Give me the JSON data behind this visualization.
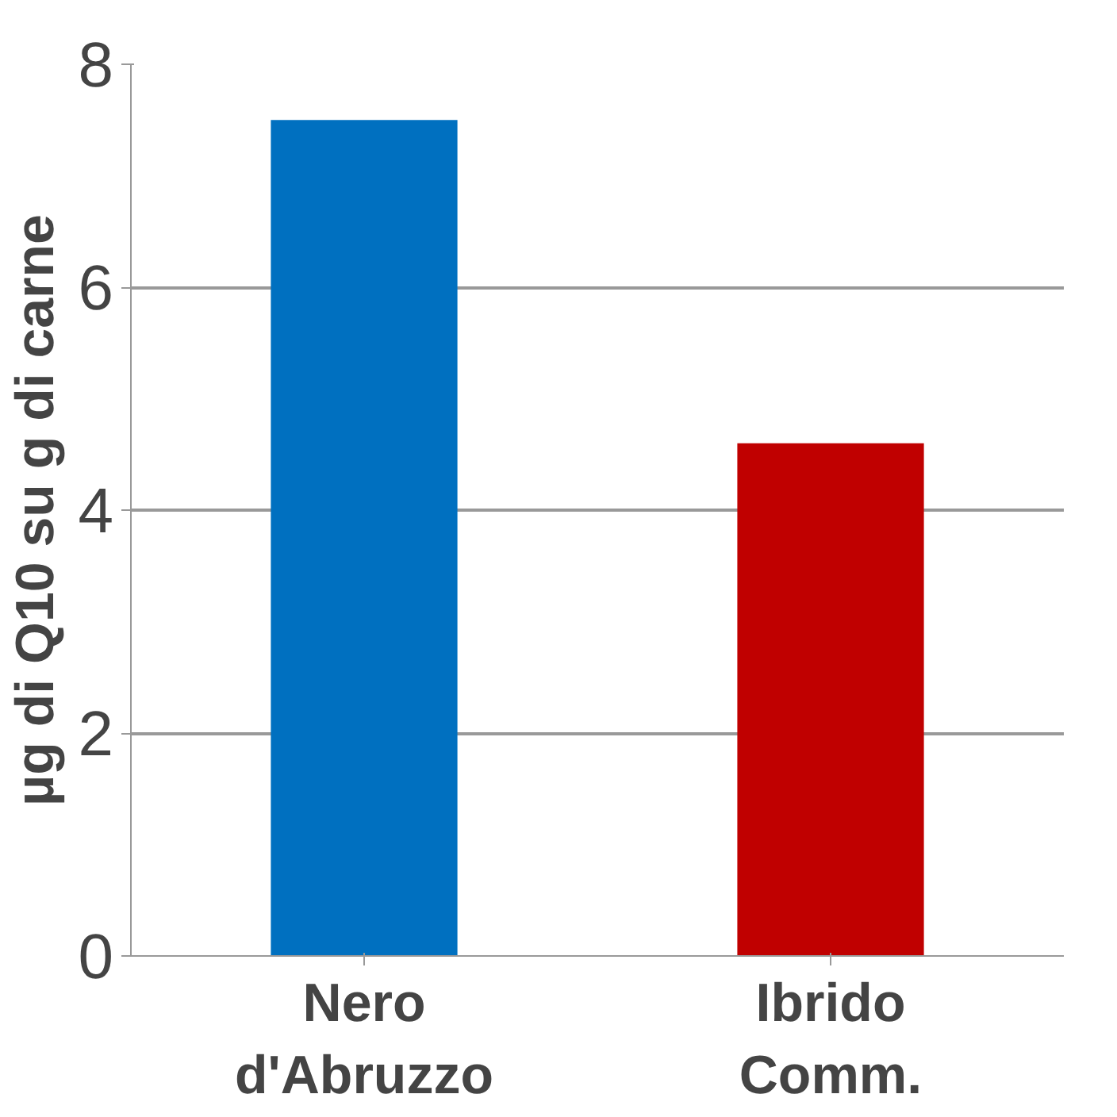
{
  "chart_data": {
    "type": "bar",
    "ylabel": "µg di Q10 su g di carne",
    "categories": [
      "Nero d'Abruzzo",
      "Ibrido Comm."
    ],
    "values": [
      7.5,
      4.6
    ],
    "colors": [
      "#0070c0",
      "#c00000"
    ],
    "ylim": [
      0,
      8
    ],
    "yticks": [
      0,
      2,
      4,
      6,
      8
    ],
    "grid": "y"
  }
}
